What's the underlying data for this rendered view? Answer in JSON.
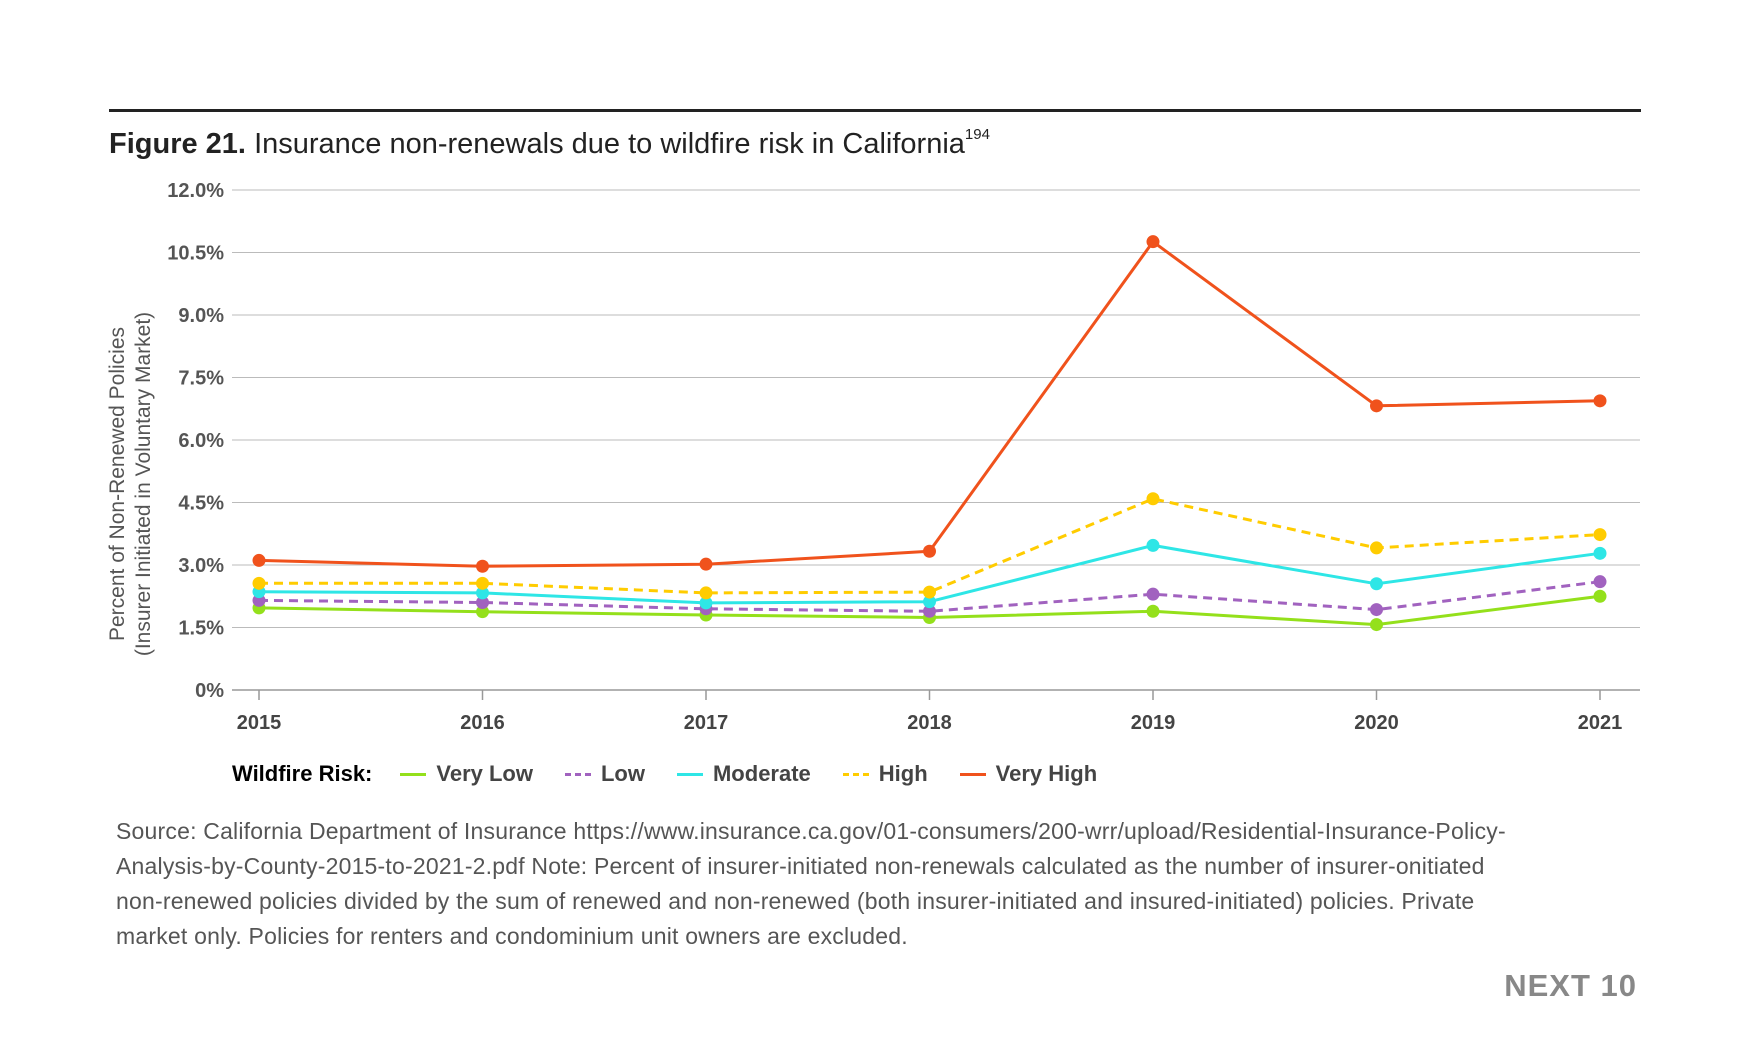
{
  "figure": {
    "label": "Figure 21.",
    "title": "Insurance non-renewals due to wildfire risk in California",
    "footnote_ref": "194"
  },
  "chart_data": {
    "type": "line",
    "x": [
      "2015",
      "2016",
      "2017",
      "2018",
      "2019",
      "2020",
      "2021"
    ],
    "ylabel_line1": "Percent of Non-Renewed Policies",
    "ylabel_line2": "(Insurer Initiated in Voluntary Market)",
    "xlabel": "",
    "ylim": [
      0,
      12
    ],
    "y_ticks": [
      0,
      1.5,
      3,
      4.5,
      6,
      7.5,
      9,
      10.5,
      12
    ],
    "y_tick_labels": [
      "0%",
      "1.5%",
      "3.0%",
      "4.5%",
      "6.0%",
      "7.5%",
      "9.0%",
      "10.5%",
      "12.0%"
    ],
    "grid": true,
    "legend_position": "bottom",
    "legend_title": "Wildfire Risk:",
    "series": [
      {
        "name": "Very Low",
        "color": "#94e01b",
        "dashed": false,
        "values": [
          1.97,
          1.88,
          1.8,
          1.74,
          1.89,
          1.57,
          2.25
        ]
      },
      {
        "name": "Low",
        "color": "#a162bf",
        "dashed": true,
        "values": [
          2.15,
          2.1,
          1.95,
          1.89,
          2.3,
          1.93,
          2.6
        ]
      },
      {
        "name": "Moderate",
        "color": "#2ee6e6",
        "dashed": false,
        "values": [
          2.36,
          2.33,
          2.09,
          2.12,
          3.47,
          2.55,
          3.28
        ]
      },
      {
        "name": "High",
        "color": "#ffcc00",
        "dashed": true,
        "values": [
          2.56,
          2.56,
          2.33,
          2.35,
          4.59,
          3.41,
          3.73
        ]
      },
      {
        "name": "Very High",
        "color": "#f0521c",
        "dashed": false,
        "values": [
          3.11,
          2.97,
          3.02,
          3.33,
          10.76,
          6.82,
          6.94
        ]
      }
    ]
  },
  "source": {
    "lines": [
      "Source: California Department of Insurance https://www.insurance.ca.gov/01-consumers/200-wrr/upload/Residential-Insurance-Policy-",
      "Analysis-by-County-2015-to-2021-2.pdf Note: Percent of insurer-initiated non-renewals calculated as the number of insurer-onitiated",
      "non-renewed policies divided by the sum of renewed and non-renewed (both insurer-initiated and insured-initiated) policies. Private",
      "market only. Policies for renters and condominium unit owners are excluded."
    ]
  },
  "brand": "NEXT 10"
}
